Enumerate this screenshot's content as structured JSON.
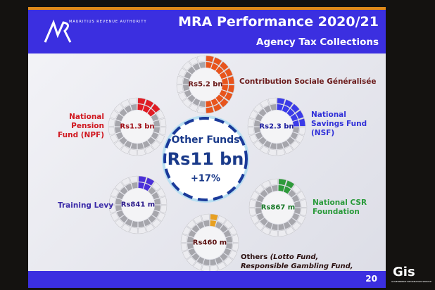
{
  "header": {
    "title": "MRA Performance 2020/21",
    "subtitle": "Agency Tax Collections",
    "logo_text": "MAURITIUS REVENUE AUTHORITY"
  },
  "center": {
    "label": "Other Funds",
    "value": "Rs11 bn",
    "growth": "+17%"
  },
  "funds": [
    {
      "name": "Contribution Sociale Généralisée",
      "value": "Rs5.2 bn",
      "color": "#e8541c",
      "share": 0.5
    },
    {
      "name": "National Pension Fund (NPF)",
      "value": "Rs1.3 bn",
      "color": "#e01c24",
      "share": 0.15
    },
    {
      "name": "National Savings Fund (NSF)",
      "value": "Rs2.3 bn",
      "color": "#3b3be8",
      "share": 0.25
    },
    {
      "name": "Training Levy",
      "value": "Rs841 m",
      "color": "#4a2fd8",
      "share": 0.1
    },
    {
      "name": "National CSR Foundation",
      "value": "Rs867 m",
      "color": "#2e9a3a",
      "share": 0.1
    },
    {
      "name": "Others",
      "name_note": "(Lotto Fund, Responsible Gambling Fund, PRGF, etc.)",
      "value": "Rs460 m",
      "color": "#e8a020",
      "share": 0.05
    }
  ],
  "footer": {
    "page": "20"
  },
  "watermark": {
    "text": "Gis",
    "sub": "GOVERNMENT INFORMATION SERVICE"
  }
}
